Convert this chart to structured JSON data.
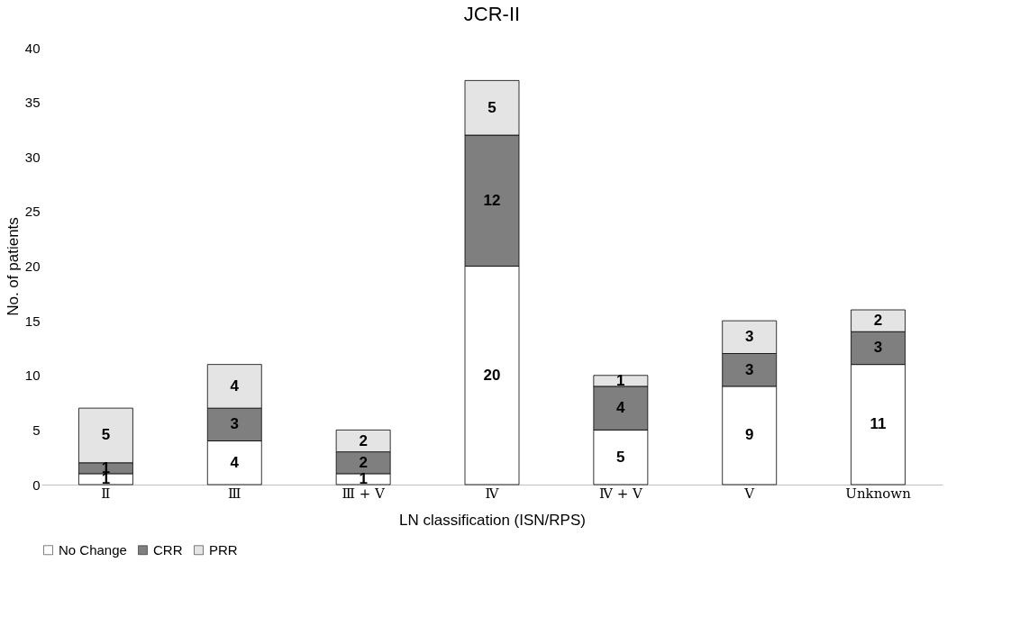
{
  "chart_data": {
    "type": "bar",
    "title": "JCR-II",
    "xlabel": "LN classification (ISN/RPS)",
    "ylabel": "No. of patients",
    "categories": [
      "Ⅱ",
      "Ⅲ",
      "Ⅲ + Ⅴ",
      "Ⅳ",
      "Ⅳ + Ⅴ",
      "Ⅴ",
      "Unknown"
    ],
    "stacked": true,
    "data_labels": true,
    "legend": "bottom",
    "grid": false,
    "ylim": [
      0,
      40
    ],
    "yticks": [
      0,
      5,
      10,
      15,
      20,
      25,
      30,
      35,
      40
    ],
    "series": [
      {
        "name": "No Change",
        "color": "#ffffff",
        "values": [
          1,
          4,
          1,
          20,
          5,
          9,
          11
        ]
      },
      {
        "name": "CRR",
        "color": "#7f7f7f",
        "values": [
          1,
          3,
          2,
          12,
          4,
          3,
          3
        ]
      },
      {
        "name": "PRR",
        "color": "#e4e4e4",
        "values": [
          5,
          4,
          2,
          5,
          1,
          3,
          2
        ]
      }
    ]
  }
}
